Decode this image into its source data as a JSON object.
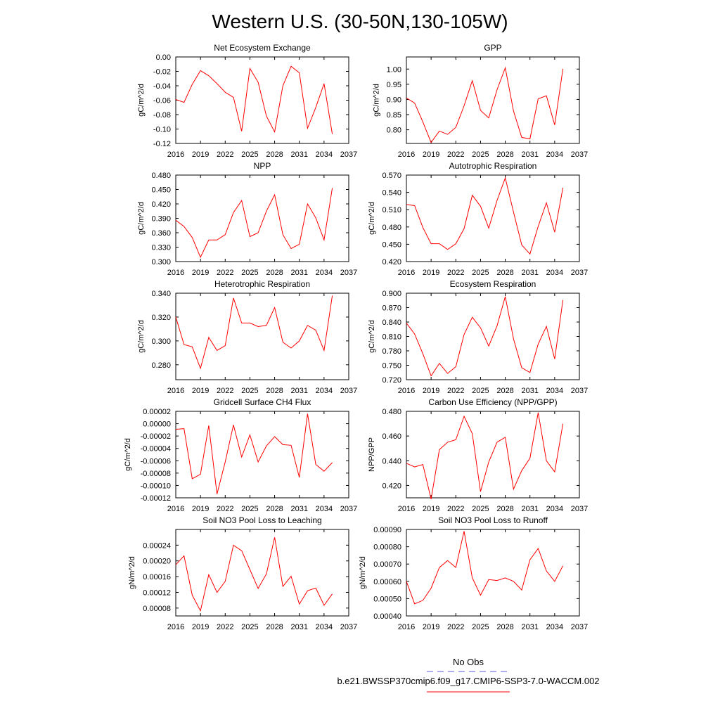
{
  "page_title": "Western U.S. (30-50N,130-105W)",
  "legend": {
    "entries": [
      {
        "label": "No Obs",
        "color": "#5a5adc",
        "dash": "dashed"
      },
      {
        "label": "b.e21.BWSSP370cmip6.f09_g17.CMIP6-SSP3-7.0-WACCM.002",
        "color": "#ff0000",
        "dash": "solid"
      }
    ]
  },
  "chart_data": [
    {
      "type": "line",
      "title": "Net Ecosystem Exchange",
      "xlabel": "",
      "ylabel": "gC/m^2/d",
      "xlim": [
        2016,
        2037
      ],
      "xticks": [
        2016,
        2019,
        2022,
        2025,
        2028,
        2031,
        2034,
        2037
      ],
      "ylim": [
        -0.12,
        0.0
      ],
      "yticks": [
        -0.12,
        -0.1,
        -0.08,
        -0.06,
        -0.04,
        -0.02,
        0.0
      ],
      "ytick_labels": [
        "-0.12",
        "-0.10",
        "-0.08",
        "-0.06",
        "-0.04",
        "-0.02",
        "0.00"
      ],
      "series": [
        {
          "color": "#ff0000",
          "x": [
            2016,
            2017,
            2018,
            2019,
            2020,
            2021,
            2022,
            2023,
            2024,
            2025,
            2026,
            2027,
            2028,
            2029,
            2030,
            2031,
            2032,
            2033,
            2034,
            2035
          ],
          "values": [
            -0.059,
            -0.063,
            -0.038,
            -0.019,
            -0.026,
            -0.037,
            -0.049,
            -0.056,
            -0.103,
            -0.016,
            -0.035,
            -0.082,
            -0.104,
            -0.04,
            -0.013,
            -0.022,
            -0.099,
            -0.07,
            -0.037,
            -0.107
          ]
        }
      ]
    },
    {
      "type": "line",
      "title": "GPP",
      "xlabel": "",
      "ylabel": "gC/m^2/d",
      "xlim": [
        2016,
        2037
      ],
      "xticks": [
        2016,
        2019,
        2022,
        2025,
        2028,
        2031,
        2034,
        2037
      ],
      "ylim": [
        0.755,
        1.04
      ],
      "yticks": [
        0.8,
        0.85,
        0.9,
        0.95,
        1.0
      ],
      "ytick_labels": [
        "0.80",
        "0.85",
        "0.90",
        "0.95",
        "1.00"
      ],
      "series": [
        {
          "color": "#ff0000",
          "x": [
            2016,
            2017,
            2018,
            2019,
            2020,
            2021,
            2022,
            2023,
            2024,
            2025,
            2026,
            2027,
            2028,
            2029,
            2030,
            2031,
            2032,
            2033,
            2034,
            2035
          ],
          "values": [
            0.905,
            0.888,
            0.826,
            0.758,
            0.796,
            0.785,
            0.808,
            0.879,
            0.962,
            0.864,
            0.839,
            0.932,
            1.004,
            0.862,
            0.775,
            0.77,
            0.902,
            0.912,
            0.816,
            1.001
          ]
        }
      ]
    },
    {
      "type": "line",
      "title": "NPP",
      "xlabel": "",
      "ylabel": "gC/m^2/d",
      "xlim": [
        2016,
        2037
      ],
      "xticks": [
        2016,
        2019,
        2022,
        2025,
        2028,
        2031,
        2034,
        2037
      ],
      "ylim": [
        0.3,
        0.48
      ],
      "yticks": [
        0.3,
        0.33,
        0.36,
        0.39,
        0.42,
        0.45,
        0.48
      ],
      "ytick_labels": [
        "0.300",
        "0.330",
        "0.360",
        "0.390",
        "0.420",
        "0.450",
        "0.480"
      ],
      "series": [
        {
          "color": "#ff0000",
          "x": [
            2016,
            2017,
            2018,
            2019,
            2020,
            2021,
            2022,
            2023,
            2024,
            2025,
            2026,
            2027,
            2028,
            2029,
            2030,
            2031,
            2032,
            2033,
            2034,
            2035
          ],
          "values": [
            0.386,
            0.373,
            0.35,
            0.309,
            0.345,
            0.345,
            0.356,
            0.402,
            0.427,
            0.352,
            0.36,
            0.405,
            0.439,
            0.356,
            0.327,
            0.336,
            0.42,
            0.391,
            0.345,
            0.453
          ]
        }
      ]
    },
    {
      "type": "line",
      "title": "Autotrophic Respiration",
      "xlabel": "",
      "ylabel": "gC/m^2/d",
      "xlim": [
        2016,
        2037
      ],
      "xticks": [
        2016,
        2019,
        2022,
        2025,
        2028,
        2031,
        2034,
        2037
      ],
      "ylim": [
        0.42,
        0.57
      ],
      "yticks": [
        0.42,
        0.45,
        0.48,
        0.51,
        0.54,
        0.57
      ],
      "ytick_labels": [
        "0.420",
        "0.450",
        "0.480",
        "0.510",
        "0.540",
        "0.570"
      ],
      "series": [
        {
          "color": "#ff0000",
          "x": [
            2016,
            2017,
            2018,
            2019,
            2020,
            2021,
            2022,
            2023,
            2024,
            2025,
            2026,
            2027,
            2028,
            2029,
            2030,
            2031,
            2032,
            2033,
            2034,
            2035
          ],
          "values": [
            0.519,
            0.517,
            0.479,
            0.451,
            0.451,
            0.441,
            0.451,
            0.477,
            0.535,
            0.516,
            0.478,
            0.526,
            0.565,
            0.506,
            0.449,
            0.433,
            0.481,
            0.522,
            0.471,
            0.548
          ]
        }
      ]
    },
    {
      "type": "line",
      "title": "Heterotrophic Respiration",
      "xlabel": "",
      "ylabel": "gC/m^2/d",
      "xlim": [
        2016,
        2037
      ],
      "xticks": [
        2016,
        2019,
        2022,
        2025,
        2028,
        2031,
        2034,
        2037
      ],
      "ylim": [
        0.2675,
        0.34
      ],
      "yticks": [
        0.28,
        0.3,
        0.32,
        0.34
      ],
      "ytick_labels": [
        "0.280",
        "0.300",
        "0.320",
        "0.340"
      ],
      "series": [
        {
          "color": "#ff0000",
          "x": [
            2016,
            2017,
            2018,
            2019,
            2020,
            2021,
            2022,
            2023,
            2024,
            2025,
            2026,
            2027,
            2028,
            2029,
            2030,
            2031,
            2032,
            2033,
            2034,
            2035
          ],
          "values": [
            0.32,
            0.297,
            0.295,
            0.277,
            0.303,
            0.292,
            0.296,
            0.336,
            0.315,
            0.315,
            0.312,
            0.313,
            0.328,
            0.299,
            0.294,
            0.3,
            0.313,
            0.309,
            0.292,
            0.338
          ]
        }
      ]
    },
    {
      "type": "line",
      "title": "Ecosystem Respiration",
      "xlabel": "",
      "ylabel": "gC/m^2/d",
      "xlim": [
        2016,
        2037
      ],
      "xticks": [
        2016,
        2019,
        2022,
        2025,
        2028,
        2031,
        2034,
        2037
      ],
      "ylim": [
        0.72,
        0.9
      ],
      "yticks": [
        0.72,
        0.75,
        0.78,
        0.81,
        0.84,
        0.87,
        0.9
      ],
      "ytick_labels": [
        "0.720",
        "0.750",
        "0.780",
        "0.810",
        "0.840",
        "0.870",
        "0.900"
      ],
      "series": [
        {
          "color": "#ff0000",
          "x": [
            2016,
            2017,
            2018,
            2019,
            2020,
            2021,
            2022,
            2023,
            2024,
            2025,
            2026,
            2027,
            2028,
            2029,
            2030,
            2031,
            2032,
            2033,
            2034,
            2035
          ],
          "values": [
            0.838,
            0.815,
            0.774,
            0.728,
            0.754,
            0.733,
            0.747,
            0.814,
            0.85,
            0.828,
            0.79,
            0.832,
            0.893,
            0.805,
            0.745,
            0.735,
            0.794,
            0.831,
            0.763,
            0.886
          ]
        }
      ]
    },
    {
      "type": "line",
      "title": "Gridcell Surface CH4 Flux",
      "xlabel": "",
      "ylabel": "gC/m^2/d",
      "xlim": [
        2016,
        2037
      ],
      "xticks": [
        2016,
        2019,
        2022,
        2025,
        2028,
        2031,
        2034,
        2037
      ],
      "ylim": [
        -0.00012,
        2e-05
      ],
      "yticks": [
        -0.00012,
        -0.0001,
        -8e-05,
        -6e-05,
        -4e-05,
        -2e-05,
        0.0,
        2e-05
      ],
      "ytick_labels": [
        "-0.00012",
        "-0.00010",
        "-0.00008",
        "-0.00006",
        "-0.00004",
        "-0.00002",
        "0.00000",
        "0.00002"
      ],
      "series": [
        {
          "color": "#ff0000",
          "x": [
            2016,
            2017,
            2018,
            2019,
            2020,
            2021,
            2022,
            2023,
            2024,
            2025,
            2026,
            2027,
            2028,
            2029,
            2030,
            2031,
            2032,
            2033,
            2034,
            2035
          ],
          "values": [
            -9e-06,
            -8e-06,
            -8.9e-05,
            -8.2e-05,
            -3e-06,
            -0.000114,
            -6.2e-05,
            -2e-06,
            -5.4e-05,
            -1.8e-05,
            -6.2e-05,
            -3.6e-05,
            -2.1e-05,
            -3.4e-05,
            -3.5e-05,
            -8.7e-05,
            1.6e-05,
            -6.6e-05,
            -7.7e-05,
            -6.3e-05
          ]
        }
      ]
    },
    {
      "type": "line",
      "title": "Carbon Use Efficiency (NPP/GPP)",
      "xlabel": "",
      "ylabel": "NPP/GPP",
      "xlim": [
        2016,
        2037
      ],
      "xticks": [
        2016,
        2019,
        2022,
        2025,
        2028,
        2031,
        2034,
        2037
      ],
      "ylim": [
        0.41,
        0.48
      ],
      "yticks": [
        0.42,
        0.44,
        0.46,
        0.48
      ],
      "ytick_labels": [
        "0.420",
        "0.440",
        "0.460",
        "0.480"
      ],
      "series": [
        {
          "color": "#ff0000",
          "x": [
            2016,
            2017,
            2018,
            2019,
            2020,
            2021,
            2022,
            2023,
            2024,
            2025,
            2026,
            2027,
            2028,
            2029,
            2030,
            2031,
            2032,
            2033,
            2034,
            2035
          ],
          "values": [
            0.438,
            0.435,
            0.437,
            0.409,
            0.449,
            0.455,
            0.457,
            0.476,
            0.462,
            0.415,
            0.439,
            0.455,
            0.459,
            0.417,
            0.432,
            0.442,
            0.479,
            0.44,
            0.431,
            0.47
          ]
        }
      ]
    },
    {
      "type": "line",
      "title": "Soil NO3 Pool Loss to Leaching",
      "xlabel": "",
      "ylabel": "gN/m^2/d",
      "xlim": [
        2016,
        2037
      ],
      "xticks": [
        2016,
        2019,
        2022,
        2025,
        2028,
        2031,
        2034,
        2037
      ],
      "ylim": [
        6e-05,
        0.00028
      ],
      "yticks": [
        8e-05,
        0.00012,
        0.00016,
        0.0002,
        0.00024
      ],
      "ytick_labels": [
        "0.00008",
        "0.00012",
        "0.00016",
        "0.00020",
        "0.00024"
      ],
      "series": [
        {
          "color": "#ff0000",
          "x": [
            2016,
            2017,
            2018,
            2019,
            2020,
            2021,
            2022,
            2023,
            2024,
            2025,
            2026,
            2027,
            2028,
            2029,
            2030,
            2031,
            2032,
            2033,
            2034,
            2035
          ],
          "values": [
            0.00019,
            0.000213,
            0.000113,
            7.3e-05,
            0.000165,
            0.00012,
            0.000148,
            0.00024,
            0.000226,
            0.000178,
            0.00013,
            0.000167,
            0.00026,
            0.000135,
            0.000161,
            9e-05,
            0.000124,
            0.000131,
            8.7e-05,
            0.000116
          ]
        }
      ]
    },
    {
      "type": "line",
      "title": "Soil NO3 Pool Loss to Runoff",
      "xlabel": "",
      "ylabel": "gN/m^2/d",
      "xlim": [
        2016,
        2037
      ],
      "xticks": [
        2016,
        2019,
        2022,
        2025,
        2028,
        2031,
        2034,
        2037
      ],
      "ylim": [
        0.0004,
        0.0009
      ],
      "yticks": [
        0.0004,
        0.0005,
        0.0006,
        0.0007,
        0.0008,
        0.0009
      ],
      "ytick_labels": [
        "0.00040",
        "0.00050",
        "0.00060",
        "0.00070",
        "0.00080",
        "0.00090"
      ],
      "series": [
        {
          "color": "#ff0000",
          "x": [
            2016,
            2017,
            2018,
            2019,
            2020,
            2021,
            2022,
            2023,
            2024,
            2025,
            2026,
            2027,
            2028,
            2029,
            2030,
            2031,
            2032,
            2033,
            2034,
            2035
          ],
          "values": [
            0.0006,
            0.00047,
            0.00049,
            0.00056,
            0.00068,
            0.00072,
            0.00068,
            0.00089,
            0.00062,
            0.00052,
            0.00061,
            0.000605,
            0.00062,
            0.0006,
            0.00055,
            0.000725,
            0.00079,
            0.00066,
            0.0006,
            0.00069
          ]
        }
      ]
    }
  ]
}
